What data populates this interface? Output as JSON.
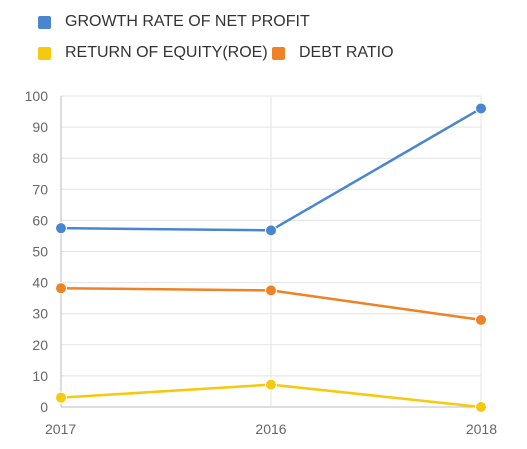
{
  "chart_data": {
    "type": "line",
    "categories": [
      "2017",
      "2016",
      "2018"
    ],
    "ylim": [
      0,
      100
    ],
    "yticks": [
      0,
      10,
      20,
      30,
      40,
      50,
      60,
      70,
      80,
      90,
      100
    ],
    "grid": true,
    "legend_position": "top-left",
    "title": "",
    "xlabel": "",
    "ylabel": "",
    "series": [
      {
        "name": "GROWTH RATE OF NET PROFIT",
        "color": "#4a86d0",
        "values": [
          57.5,
          56.8,
          96
        ]
      },
      {
        "name": "RETURN OF EQUITY(ROE)",
        "color": "#f7c90e",
        "values": [
          3,
          7.2,
          0
        ]
      },
      {
        "name": "DEBT RATIO",
        "color": "#ee8226",
        "values": [
          38.2,
          37.5,
          28
        ]
      }
    ]
  }
}
